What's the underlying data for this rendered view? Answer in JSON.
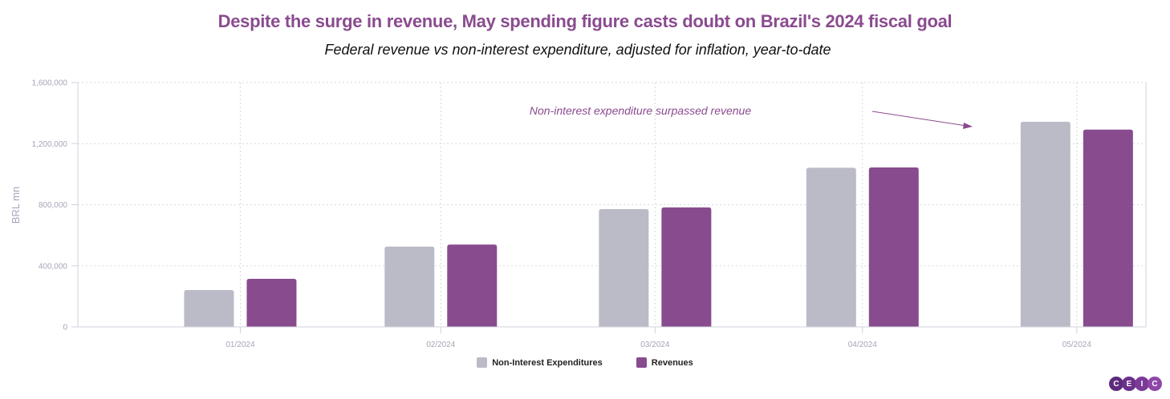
{
  "chart_data": {
    "type": "bar",
    "title": "Despite the surge in revenue, May spending figure casts doubt on Brazil's 2024 fiscal goal",
    "subtitle": "Federal revenue vs non-interest expenditure, adjusted for inflation, year-to-date",
    "xlabel": "",
    "ylabel": "BRL mn",
    "ylim": [
      0,
      1600000
    ],
    "yticks": [
      0,
      400000,
      800000,
      1200000,
      1600000
    ],
    "ytick_labels": [
      "0",
      "400,000",
      "800,000",
      "1,200,000",
      "1,600,000"
    ],
    "categories": [
      "01/2024",
      "02/2024",
      "03/2024",
      "04/2024",
      "05/2024"
    ],
    "category_days": [
      31,
      60,
      91,
      121,
      152
    ],
    "series": [
      {
        "name": "Non-Interest Expenditures",
        "color": "#bbbbc8",
        "values": [
          241000,
          526000,
          771000,
          1042000,
          1343000
        ]
      },
      {
        "name": "Revenues",
        "color": "#884c8e",
        "values": [
          315000,
          539000,
          782000,
          1044000,
          1292000
        ]
      }
    ],
    "grid": true,
    "legend_position": "bottom-center",
    "annotations": [
      {
        "text": "Non-interest expenditure surpassed revenue",
        "points_to": "05/2024"
      }
    ]
  },
  "branding": {
    "logo_letters": [
      "C",
      "E",
      "I",
      "C"
    ],
    "logo_colors": [
      "#5e2a7e",
      "#6b3089",
      "#7b3a98",
      "#8e47a8"
    ]
  }
}
